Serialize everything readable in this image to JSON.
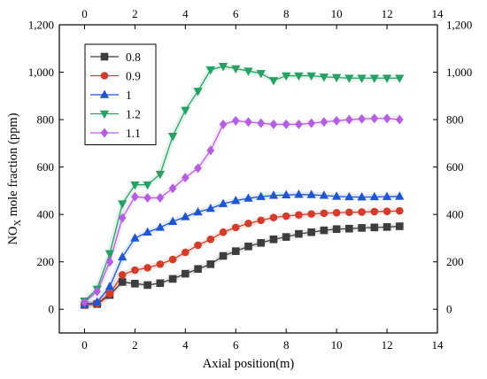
{
  "chart_data": {
    "type": "line",
    "xlabel": "Axial position(m)",
    "ylabel_main": "NO",
    "ylabel_sub": "X",
    "ylabel_rest": " mole fraction (ppm)",
    "xlim": [
      -1,
      14
    ],
    "ylim": [
      -100,
      1200
    ],
    "x_ticks": [
      0,
      2,
      4,
      6,
      8,
      10,
      12,
      14
    ],
    "x_tick_labels": [
      "0",
      "2",
      "4",
      "6",
      "8",
      "10",
      "12",
      "14"
    ],
    "y_ticks": [
      0,
      200,
      400,
      600,
      800,
      1000,
      1200
    ],
    "y_tick_labels": [
      "0",
      "200",
      "400",
      "600",
      "800",
      "1,000",
      "1,200"
    ],
    "grid": false,
    "legend_position": "top-left",
    "series": [
      {
        "name": "0.8",
        "color": "#3d3d3d",
        "marker": "square",
        "x": [
          0,
          0.5,
          1,
          1.5,
          2,
          2.5,
          3,
          3.5,
          4,
          4.5,
          5,
          5.5,
          6,
          6.5,
          7,
          7.5,
          8,
          8.5,
          9,
          9.5,
          10,
          10.5,
          11,
          11.5,
          12,
          12.5
        ],
        "y": [
          18,
          22,
          60,
          115,
          108,
          102,
          110,
          128,
          150,
          170,
          190,
          225,
          245,
          265,
          280,
          295,
          305,
          318,
          325,
          333,
          338,
          340,
          343,
          345,
          347,
          350
        ]
      },
      {
        "name": "0.9",
        "color": "#d23c2a",
        "marker": "circle",
        "x": [
          0,
          0.5,
          1,
          1.5,
          2,
          2.5,
          3,
          3.5,
          4,
          4.5,
          5,
          5.5,
          6,
          6.5,
          7,
          7.5,
          8,
          8.5,
          9,
          9.5,
          10,
          10.5,
          11,
          11.5,
          12,
          12.5
        ],
        "y": [
          18,
          25,
          65,
          145,
          165,
          175,
          190,
          210,
          240,
          270,
          295,
          325,
          345,
          362,
          375,
          387,
          393,
          398,
          402,
          405,
          407,
          409,
          410,
          412,
          413,
          415
        ]
      },
      {
        "name": "1",
        "color": "#1f55cf",
        "marker": "triangle-up",
        "x": [
          0,
          0.5,
          1,
          1.5,
          2,
          2.5,
          3,
          3.5,
          4,
          4.5,
          5,
          5.5,
          6,
          6.5,
          7,
          7.5,
          8,
          8.5,
          9,
          9.5,
          10,
          10.5,
          11,
          11.5,
          12,
          12.5
        ],
        "y": [
          20,
          30,
          95,
          220,
          300,
          325,
          345,
          370,
          390,
          410,
          425,
          445,
          458,
          468,
          475,
          480,
          482,
          484,
          483,
          480,
          476,
          474,
          473,
          474,
          475,
          476
        ]
      },
      {
        "name": "1.2",
        "color": "#28a064",
        "marker": "triangle-down",
        "x": [
          0,
          0.5,
          1,
          1.5,
          2,
          2.5,
          3,
          3.5,
          4,
          4.5,
          5,
          5.5,
          6,
          6.5,
          7,
          7.5,
          8,
          8.5,
          9,
          9.5,
          10,
          10.5,
          11,
          11.5,
          12,
          12.5
        ],
        "y": [
          35,
          85,
          235,
          445,
          525,
          525,
          570,
          730,
          840,
          920,
          1010,
          1025,
          1015,
          1005,
          995,
          965,
          985,
          985,
          985,
          980,
          978,
          975,
          975,
          975,
          975,
          975
        ]
      },
      {
        "name": "1.1",
        "color": "#b45fe0",
        "marker": "diamond",
        "x": [
          0,
          0.5,
          1,
          1.5,
          2,
          2.5,
          3,
          3.5,
          4,
          4.5,
          5,
          5.5,
          6,
          6.5,
          7,
          7.5,
          8,
          8.5,
          9,
          9.5,
          10,
          10.5,
          11,
          11.5,
          12,
          12.5
        ],
        "y": [
          30,
          75,
          200,
          385,
          475,
          470,
          470,
          510,
          555,
          595,
          670,
          780,
          795,
          790,
          785,
          780,
          780,
          780,
          785,
          790,
          795,
          800,
          803,
          805,
          805,
          800
        ]
      }
    ]
  }
}
